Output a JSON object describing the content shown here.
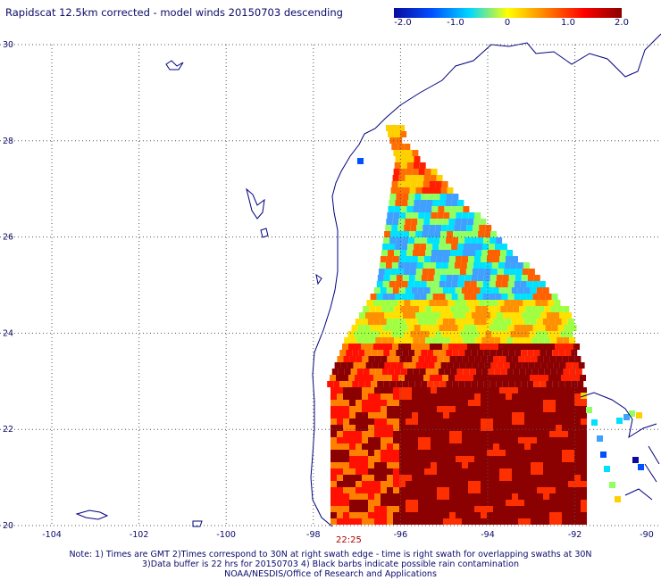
{
  "title": "Rapidscat 12.5km corrected - model winds 20150703 descending",
  "colorbar": {
    "labels": [
      "-2.0",
      "-1.0",
      "0",
      "1.0",
      "2.0"
    ],
    "values": [
      -2.0,
      -1.0,
      0,
      1.0,
      2.0
    ],
    "colors": [
      "#0a0a9e",
      "#0050ff",
      "#00d8ff",
      "#ffff00",
      "#ff8000",
      "#ff0000",
      "#8b0000"
    ]
  },
  "axes": {
    "lat_labels": [
      "30",
      "28",
      "26",
      "24",
      "22",
      "20"
    ],
    "lat_values": [
      30,
      28,
      26,
      24,
      22,
      20
    ],
    "lon_labels": [
      "-104",
      "-102",
      "-100",
      "-98",
      "-96",
      "-94",
      "-92",
      "-90"
    ],
    "lon_values": [
      -104,
      -102,
      -100,
      -98,
      -96,
      -94,
      -92,
      -90
    ],
    "grid": "dotted"
  },
  "time_label": "22:25",
  "notes": {
    "line1": "Note: 1) Times are GMT 2)Times correspond to 30N at right swath edge - time is right swath for overlapping swaths at 30N",
    "line2": "3)Data buffer is 22 hrs for 20150703 4) Black barbs indicate possible rain contamination",
    "line3": "NOAA/NESDIS/Office of Research and Applications"
  }
}
